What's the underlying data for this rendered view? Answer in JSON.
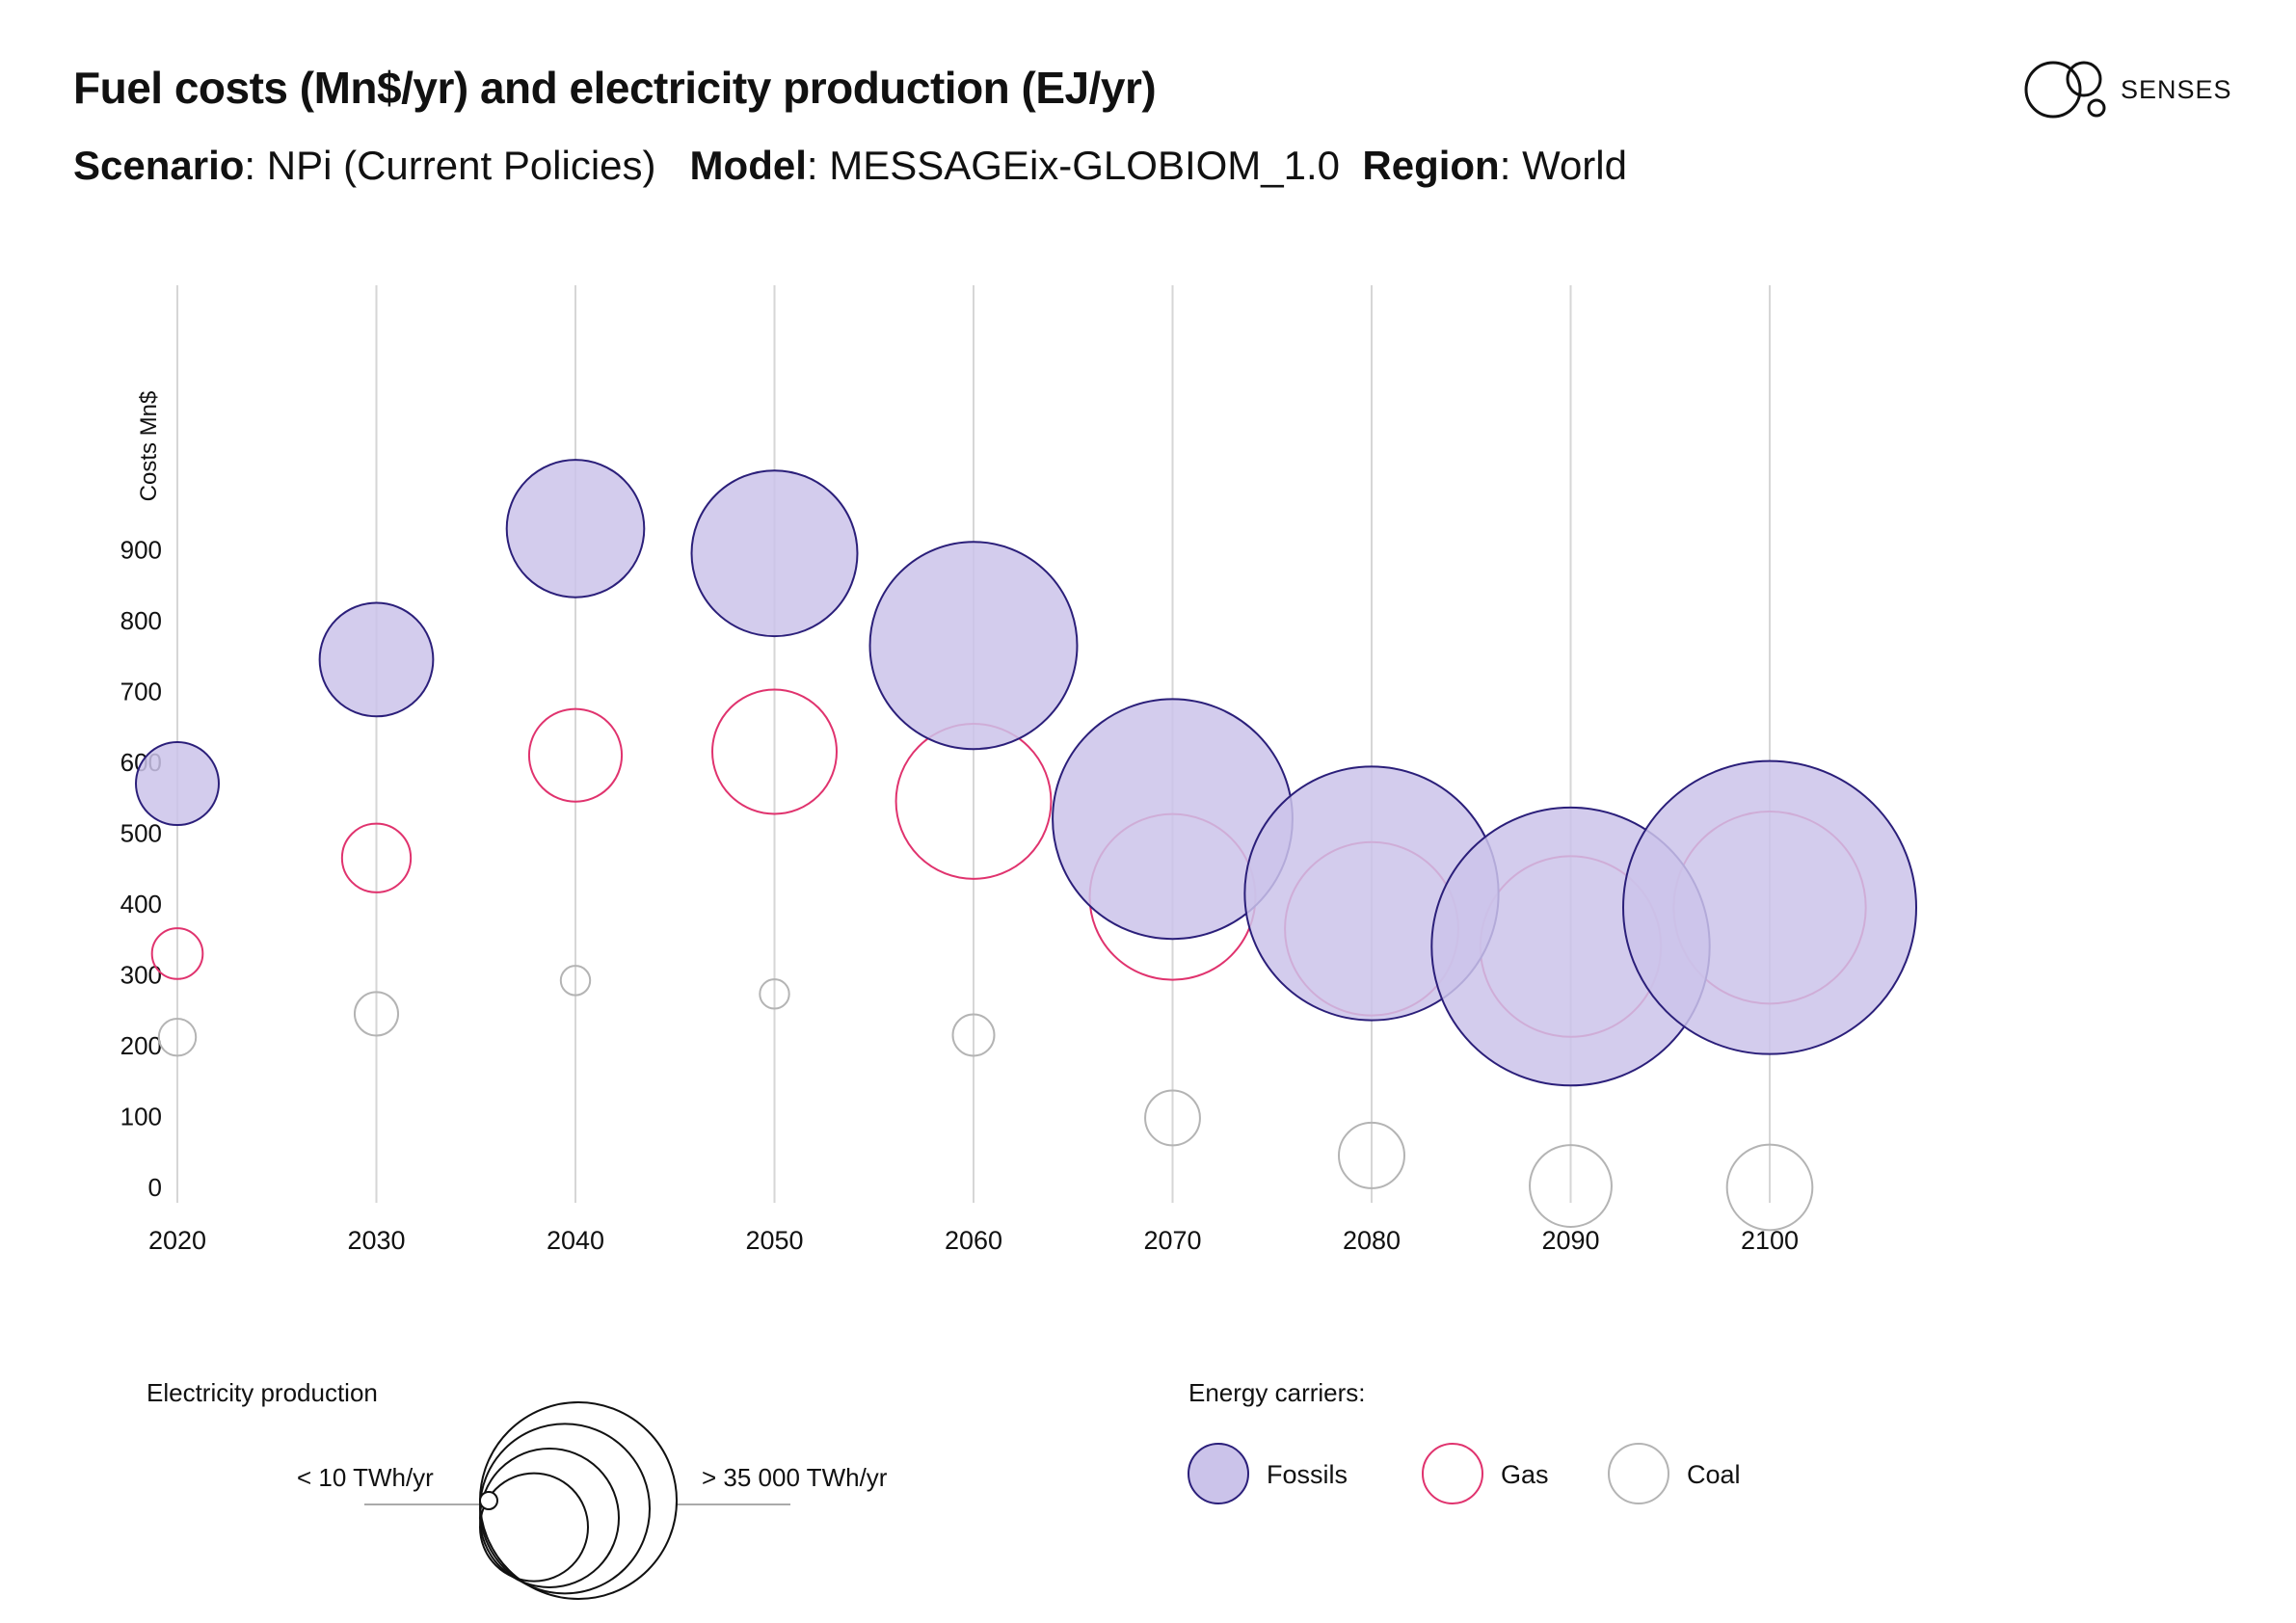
{
  "header": {
    "title": "Fuel costs (Mn$/yr) and electricity production (EJ/yr)",
    "scenario_key": "Scenario",
    "scenario_value": "NPi (Current Policies)",
    "model_key": "Model",
    "model_value": "MESSAGEix-GLOBIOM_1.0",
    "region_key": "Region",
    "region_value": "World"
  },
  "logo": {
    "text": "SENSES",
    "icon": "senses-circles-icon"
  },
  "legend": {
    "size_title": "Electricity production",
    "size_min": "< 10 TWh/yr",
    "size_max": "> 35 000 TWh/yr",
    "carriers_title": "Energy carriers:"
  },
  "chart_data": {
    "type": "scatter",
    "encoding": "bubble (circle area = electricity production)",
    "ylabel": "Costs Mn$",
    "xlabel": "",
    "x": [
      2020,
      2030,
      2040,
      2050,
      2060,
      2070,
      2080,
      2090,
      2100
    ],
    "yticks": [
      0,
      100,
      200,
      300,
      400,
      500,
      600,
      700,
      800,
      900
    ],
    "ylim": [
      0,
      900
    ],
    "grid": "vertical lines at each year",
    "series": [
      {
        "name": "Fossils",
        "color": "#2b1f7a",
        "fill": "#cbc3ea",
        "cost": [
          570,
          745,
          930,
          895,
          765,
          520,
          415,
          340,
          395
        ],
        "size": [
          8,
          15,
          22,
          32,
          50,
          67,
          75,
          90,
          100
        ]
      },
      {
        "name": "Gas",
        "color": "#e0336e",
        "fill": "none",
        "cost": [
          330,
          465,
          610,
          615,
          545,
          410,
          365,
          340,
          395
        ],
        "size": [
          3,
          5.5,
          10,
          18,
          28,
          32,
          35,
          38,
          43
        ]
      },
      {
        "name": "Coal",
        "color": "#b4b4b4",
        "fill": "none",
        "cost": [
          212,
          245,
          292,
          273,
          215,
          98,
          45,
          2,
          0
        ],
        "size": [
          1.6,
          2.2,
          1.0,
          1.0,
          2.0,
          3.5,
          5.0,
          7.8,
          8.5
        ]
      }
    ]
  }
}
